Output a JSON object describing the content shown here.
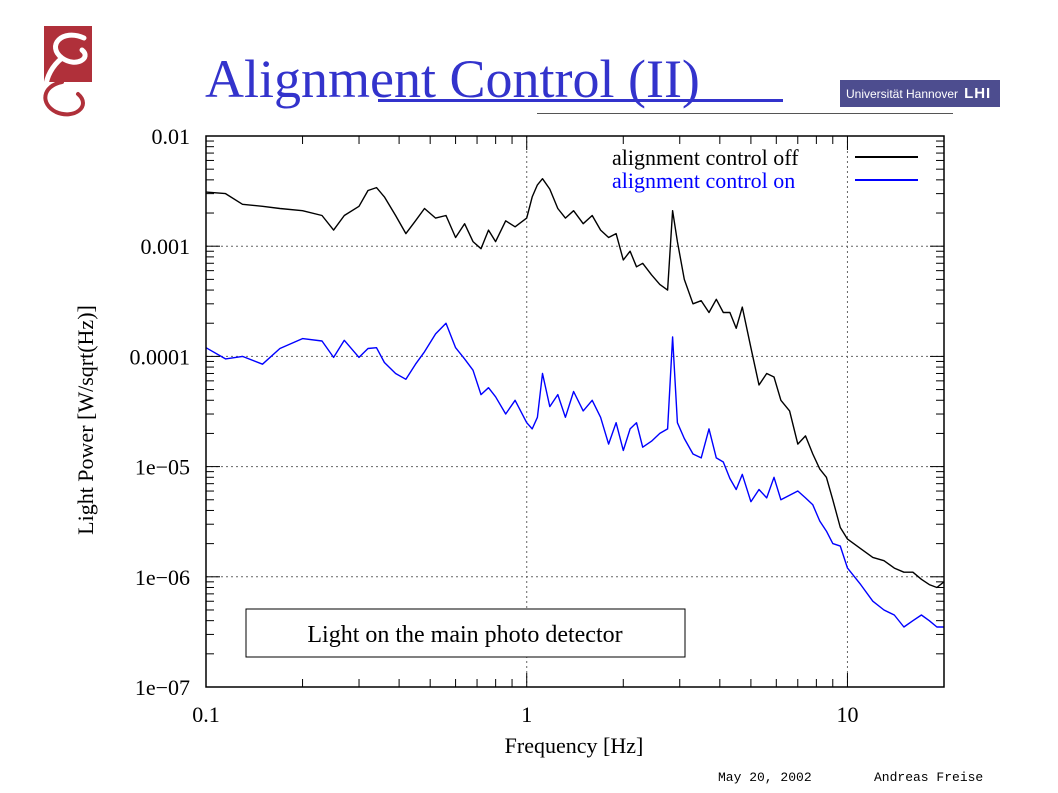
{
  "slide": {
    "title": "Alignment Control (II)",
    "university_name": "Universität Hannover",
    "university_mark": "LHI",
    "footer_date": "May 20, 2002",
    "footer_author": "Andreas Freise"
  },
  "colors": {
    "title": "#3333cc",
    "series_off": "#000000",
    "series_on": "#0000ff",
    "grid": "#666666",
    "logo": "#b0303a"
  },
  "chart_data": {
    "type": "line",
    "title": "",
    "xlabel": "Frequency [Hz]",
    "ylabel": "Light Power [W/sqrt(Hz)]",
    "xscale": "log",
    "yscale": "log",
    "xlim": [
      0.1,
      20
    ],
    "ylim": [
      1e-07,
      0.01
    ],
    "grid": true,
    "legend_position": "top-right",
    "x_ticks": [
      {
        "value": 0.1,
        "label": "0.1"
      },
      {
        "value": 1,
        "label": "1"
      },
      {
        "value": 10,
        "label": "10"
      }
    ],
    "y_ticks": [
      {
        "value": 0.01,
        "label": "0.01"
      },
      {
        "value": 0.001,
        "label": "0.001"
      },
      {
        "value": 0.0001,
        "label": "0.0001"
      },
      {
        "value": 1e-05,
        "label": "1e−05"
      },
      {
        "value": 1e-06,
        "label": "1e−06"
      },
      {
        "value": 1e-07,
        "label": "1e−07"
      }
    ],
    "annotation": "Light on the main photo detector",
    "series": [
      {
        "name": "alignment control off",
        "color": "#000000",
        "x": [
          0.1,
          0.115,
          0.13,
          0.15,
          0.17,
          0.2,
          0.23,
          0.25,
          0.27,
          0.3,
          0.32,
          0.34,
          0.36,
          0.39,
          0.42,
          0.45,
          0.48,
          0.52,
          0.56,
          0.6,
          0.64,
          0.68,
          0.72,
          0.76,
          0.8,
          0.86,
          0.92,
          1.0,
          1.04,
          1.08,
          1.12,
          1.18,
          1.25,
          1.32,
          1.4,
          1.5,
          1.6,
          1.7,
          1.8,
          1.9,
          2.0,
          2.1,
          2.2,
          2.3,
          2.45,
          2.6,
          2.75,
          2.85,
          2.95,
          3.1,
          3.3,
          3.5,
          3.7,
          3.9,
          4.1,
          4.3,
          4.5,
          4.7,
          5.0,
          5.3,
          5.6,
          5.9,
          6.2,
          6.6,
          7.0,
          7.4,
          7.8,
          8.2,
          8.6,
          9.0,
          9.5,
          10.0,
          11.0,
          12.0,
          13.0,
          14.0,
          15.0,
          16.0,
          17.0,
          18.0,
          19.0,
          20.0
        ],
        "y": [
          0.0031,
          0.003,
          0.0024,
          0.0023,
          0.0022,
          0.0021,
          0.0019,
          0.0014,
          0.0019,
          0.0023,
          0.0032,
          0.0034,
          0.0028,
          0.0019,
          0.0013,
          0.0017,
          0.0022,
          0.0018,
          0.0019,
          0.0012,
          0.0016,
          0.0011,
          0.00095,
          0.0014,
          0.0011,
          0.0017,
          0.0015,
          0.0018,
          0.0028,
          0.0036,
          0.0041,
          0.0033,
          0.0022,
          0.0018,
          0.0021,
          0.0016,
          0.0019,
          0.0014,
          0.0012,
          0.0013,
          0.00075,
          0.0009,
          0.00065,
          0.0007,
          0.00055,
          0.00045,
          0.0004,
          0.0021,
          0.0011,
          0.0005,
          0.0003,
          0.00032,
          0.00025,
          0.00033,
          0.00025,
          0.00025,
          0.00018,
          0.00028,
          0.00012,
          5.5e-05,
          7e-05,
          6.5e-05,
          4e-05,
          3.2e-05,
          1.6e-05,
          1.9e-05,
          1.3e-05,
          9.5e-06,
          8e-06,
          5e-06,
          2.8e-06,
          2.2e-06,
          1.8e-06,
          1.5e-06,
          1.4e-06,
          1.2e-06,
          1.1e-06,
          1.1e-06,
          9.5e-07,
          8.5e-07,
          8e-07,
          9e-07
        ]
      },
      {
        "name": "alignment control on",
        "color": "#0000ff",
        "x": [
          0.1,
          0.115,
          0.13,
          0.15,
          0.17,
          0.2,
          0.23,
          0.25,
          0.27,
          0.3,
          0.32,
          0.34,
          0.36,
          0.39,
          0.42,
          0.45,
          0.48,
          0.52,
          0.56,
          0.6,
          0.64,
          0.68,
          0.72,
          0.76,
          0.8,
          0.86,
          0.92,
          1.0,
          1.04,
          1.08,
          1.12,
          1.18,
          1.25,
          1.32,
          1.4,
          1.5,
          1.6,
          1.7,
          1.8,
          1.9,
          2.0,
          2.1,
          2.2,
          2.3,
          2.45,
          2.6,
          2.75,
          2.85,
          2.95,
          3.1,
          3.3,
          3.5,
          3.7,
          3.9,
          4.1,
          4.3,
          4.5,
          4.7,
          5.0,
          5.3,
          5.6,
          5.9,
          6.2,
          6.6,
          7.0,
          7.4,
          7.8,
          8.2,
          8.6,
          9.0,
          9.5,
          10.0,
          11.0,
          12.0,
          13.0,
          14.0,
          15.0,
          16.0,
          17.0,
          18.0,
          19.0,
          20.0
        ],
        "y": [
          0.00012,
          9.5e-05,
          0.0001,
          8.5e-05,
          0.000118,
          0.000145,
          0.000138,
          9.8e-05,
          0.00014,
          9.8e-05,
          0.000118,
          0.00012,
          8.8e-05,
          7e-05,
          6.2e-05,
          8.5e-05,
          0.00011,
          0.00016,
          0.0002,
          0.00012,
          9.5e-05,
          7.5e-05,
          4.5e-05,
          5.2e-05,
          4.3e-05,
          3e-05,
          4e-05,
          2.5e-05,
          2.2e-05,
          2.8e-05,
          7e-05,
          3.5e-05,
          4.5e-05,
          2.8e-05,
          4.8e-05,
          3.2e-05,
          4e-05,
          2.8e-05,
          1.6e-05,
          2.5e-05,
          1.4e-05,
          2.2e-05,
          2.5e-05,
          1.5e-05,
          1.7e-05,
          2e-05,
          2.2e-05,
          0.00015,
          2.5e-05,
          1.8e-05,
          1.3e-05,
          1.2e-05,
          2.2e-05,
          1.2e-05,
          1.1e-05,
          7.8e-06,
          6.2e-06,
          8.5e-06,
          4.8e-06,
          6.2e-06,
          5.2e-06,
          8e-06,
          5e-06,
          5.5e-06,
          6e-06,
          5.2e-06,
          4.5e-06,
          3.2e-06,
          2.6e-06,
          2e-06,
          1.9e-06,
          1.2e-06,
          8.5e-07,
          6e-07,
          5e-07,
          4.5e-07,
          3.5e-07,
          4e-07,
          4.5e-07,
          4e-07,
          3.5e-07,
          3.5e-07
        ]
      }
    ]
  }
}
